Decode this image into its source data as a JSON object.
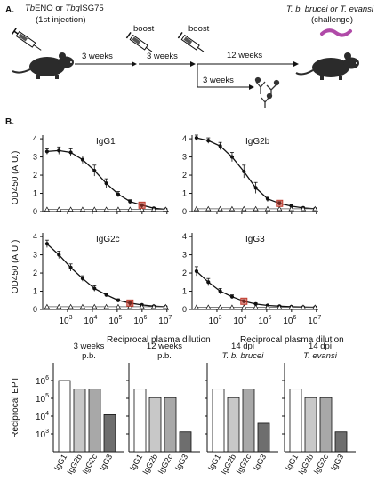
{
  "panel_a": {
    "label": "A.",
    "injection_text_1": "ENO or ",
    "injection_prefix_1": "Tb",
    "injection_prefix_2": "Tbg",
    "injection_text_2": "ISG75",
    "injection_sub": "(1st injection)",
    "boost_1": "boost",
    "boost_2": "boost",
    "interval_1": "3 weeks",
    "interval_2": "3 weeks",
    "interval_3": "12 weeks",
    "interval_4": "3 weeks",
    "challenge_title": "T. b. brucei or T. evansi",
    "challenge_sub": "(challenge)"
  },
  "panel_b": {
    "label": "B.",
    "ylabel": "OD450 (A.U.)",
    "xlabel": "Reciprocal plasma dilution",
    "y_ticks": [
      "0",
      "1",
      "2",
      "3",
      "4"
    ],
    "x_ticks": [
      "10",
      "10",
      "10",
      "10",
      "10"
    ],
    "x_tick_exps": [
      "3",
      "4",
      "5",
      "6",
      "7"
    ]
  },
  "panel_c": {
    "ylabel": "Reciprocal EPT",
    "y_ticks": [
      "10",
      "10",
      "10",
      "10"
    ],
    "y_tick_exps": [
      "3",
      "4",
      "5",
      "6"
    ],
    "categories": [
      "IgG1",
      "IgG2b",
      "IgG2c",
      "IgG3"
    ]
  },
  "chart_data": [
    {
      "type": "line",
      "title": "IgG1",
      "xlabel": "Reciprocal plasma dilution",
      "ylabel": "OD450 (A.U.)",
      "x_scale": "log",
      "ylim": [
        0,
        4.2
      ],
      "series": [
        {
          "x": [
            150,
            450,
            1350,
            4050,
            12150,
            36450,
            109350,
            328050,
            984150,
            2952450,
            8857350
          ],
          "y": [
            3.3,
            3.35,
            3.25,
            2.85,
            2.25,
            1.55,
            0.95,
            0.55,
            0.35,
            0.18,
            0.12
          ],
          "err": [
            0.15,
            0.2,
            0.2,
            0.2,
            0.3,
            0.25,
            0.15,
            0.1,
            0.08,
            0.05,
            0.03
          ]
        },
        {
          "x": [
            150,
            450,
            1350,
            4050,
            12150,
            36450,
            109350,
            328050,
            984150,
            2952450,
            8857350
          ],
          "y": [
            0.12,
            0.12,
            0.12,
            0.12,
            0.12,
            0.12,
            0.12,
            0.12,
            0.12,
            0.12,
            0.12
          ]
        }
      ],
      "endpoint_x": 984150
    },
    {
      "type": "line",
      "title": "IgG2b",
      "xlabel": "Reciprocal plasma dilution",
      "ylabel": "OD450 (A.U.)",
      "x_scale": "log",
      "ylim": [
        0,
        4.2
      ],
      "series": [
        {
          "x": [
            150,
            450,
            1350,
            4050,
            12150,
            36450,
            109350,
            328050,
            984150,
            2952450,
            8857350
          ],
          "y": [
            4.05,
            3.9,
            3.6,
            3.0,
            2.2,
            1.3,
            0.7,
            0.45,
            0.3,
            0.2,
            0.15
          ],
          "err": [
            0.15,
            0.15,
            0.2,
            0.25,
            0.35,
            0.3,
            0.15,
            0.1,
            0.08,
            0.05,
            0.03
          ]
        },
        {
          "x": [
            150,
            450,
            1350,
            4050,
            12150,
            36450,
            109350,
            328050,
            984150,
            2952450,
            8857350
          ],
          "y": [
            0.15,
            0.15,
            0.15,
            0.15,
            0.15,
            0.15,
            0.15,
            0.15,
            0.15,
            0.15,
            0.15
          ]
        }
      ],
      "endpoint_x": 328050
    },
    {
      "type": "line",
      "title": "IgG2c",
      "xlabel": "Reciprocal plasma dilution",
      "ylabel": "OD450 (A.U.)",
      "x_scale": "log",
      "ylim": [
        0,
        4.2
      ],
      "series": [
        {
          "x": [
            150,
            450,
            1350,
            4050,
            12150,
            36450,
            109350,
            328050,
            984150,
            2952450,
            8857350
          ],
          "y": [
            3.6,
            3.0,
            2.3,
            1.7,
            1.15,
            0.8,
            0.5,
            0.35,
            0.25,
            0.18,
            0.15
          ],
          "err": [
            0.2,
            0.2,
            0.2,
            0.15,
            0.15,
            0.1,
            0.08,
            0.06,
            0.05,
            0.04,
            0.03
          ]
        },
        {
          "x": [
            150,
            450,
            1350,
            4050,
            12150,
            36450,
            109350,
            328050,
            984150,
            2952450,
            8857350
          ],
          "y": [
            0.15,
            0.15,
            0.15,
            0.15,
            0.15,
            0.15,
            0.15,
            0.15,
            0.15,
            0.15,
            0.15
          ]
        }
      ],
      "endpoint_x": 328050
    },
    {
      "type": "line",
      "title": "IgG3",
      "xlabel": "Reciprocal plasma dilution",
      "ylabel": "OD450 (A.U.)",
      "x_scale": "log",
      "ylim": [
        0,
        4.2
      ],
      "series": [
        {
          "x": [
            150,
            450,
            1350,
            4050,
            12150,
            36450,
            109350,
            328050,
            984150,
            2952450,
            8857350
          ],
          "y": [
            2.1,
            1.5,
            1.0,
            0.7,
            0.45,
            0.3,
            0.22,
            0.18,
            0.15,
            0.13,
            0.12
          ],
          "err": [
            0.25,
            0.2,
            0.15,
            0.1,
            0.08,
            0.06,
            0.05,
            0.04,
            0.03,
            0.03,
            0.02
          ]
        },
        {
          "x": [
            150,
            450,
            1350,
            4050,
            12150,
            36450,
            109350,
            328050,
            984150,
            2952450,
            8857350
          ],
          "y": [
            0.12,
            0.12,
            0.12,
            0.12,
            0.12,
            0.12,
            0.12,
            0.12,
            0.12,
            0.12,
            0.12
          ]
        }
      ],
      "endpoint_x": 12150
    },
    {
      "type": "bar",
      "title_lines": [
        "3 weeks",
        "p.b."
      ],
      "categories": [
        "IgG1",
        "IgG2b",
        "IgG2c",
        "IgG3"
      ],
      "values": [
        1000000,
        330000,
        330000,
        12000
      ],
      "ylabel": "Reciprocal EPT",
      "y_scale": "log",
      "ylim": [
        100,
        10000000
      ]
    },
    {
      "type": "bar",
      "title_lines": [
        "12 weeks",
        "p.b."
      ],
      "categories": [
        "IgG1",
        "IgG2b",
        "IgG2c",
        "IgG3"
      ],
      "values": [
        330000,
        110000,
        110000,
        1300
      ],
      "ylabel": "Reciprocal EPT",
      "y_scale": "log",
      "ylim": [
        100,
        10000000
      ]
    },
    {
      "type": "bar",
      "title_lines": [
        "14 dpi",
        "T. b. brucei"
      ],
      "categories": [
        "IgG1",
        "IgG2b",
        "IgG2c",
        "IgG3"
      ],
      "values": [
        330000,
        110000,
        330000,
        4000
      ],
      "ylabel": "Reciprocal EPT",
      "y_scale": "log",
      "ylim": [
        100,
        10000000
      ]
    },
    {
      "type": "bar",
      "title_lines": [
        "14 dpi",
        "T. evansi"
      ],
      "categories": [
        "IgG1",
        "IgG2b",
        "IgG2c",
        "IgG3"
      ],
      "values": [
        330000,
        110000,
        110000,
        1300
      ],
      "ylabel": "Reciprocal EPT",
      "y_scale": "log",
      "ylim": [
        100,
        10000000
      ]
    }
  ],
  "colors": {
    "ink": "#111111",
    "mouse": "#2b2b2b",
    "parasite": "#b04aa8",
    "endpoint": "#c0392b",
    "bar_fills": [
      "#ffffff",
      "#c8c8c8",
      "#a8a8a8",
      "#6e6e6e"
    ]
  }
}
